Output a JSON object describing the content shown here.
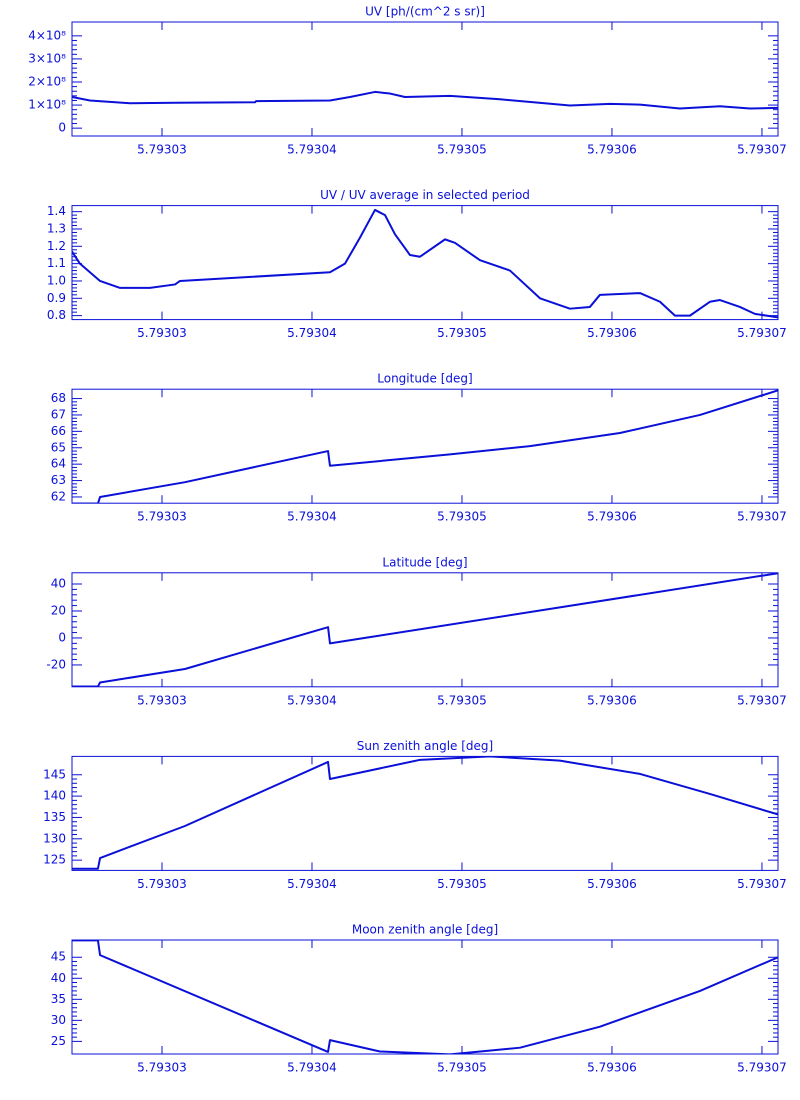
{
  "chart_data": [
    {
      "type": "line",
      "title": "UV [ph/(cm^2 s sr)]",
      "color": "#0a10d8",
      "x": [
        5.793024,
        5.7930252,
        5.79302787,
        5.79303087,
        5.7930362,
        5.79303627,
        5.7930412,
        5.79304253,
        5.7930442,
        5.7930452,
        5.7930462,
        5.7930492,
        5.79305253,
        5.7930572,
        5.79305987,
        5.79306187,
        5.79306453,
        5.7930672,
        5.7930692,
        5.79307107
      ],
      "values": [
        135000000,
        120000000,
        108000000,
        110000000,
        112000000,
        117000000,
        120000000,
        135000000,
        157000000,
        150000000,
        135000000,
        140000000,
        125000000,
        98000000,
        105000000,
        102000000,
        85000000,
        95000000,
        85000000,
        88000000
      ],
      "xlim": [
        5.793024,
        5.79307107
      ],
      "xticks": [
        5.79303,
        5.79304,
        5.79305,
        5.79306,
        5.79307
      ],
      "ylim": [
        -34000000,
        460000000
      ],
      "yticks": [
        0,
        {
          "value": 100000000,
          "label": "1×10⁸"
        },
        {
          "value": 200000000,
          "label": "2×10⁸"
        },
        {
          "value": 300000000,
          "label": "3×10⁸"
        },
        {
          "value": 400000000,
          "label": "4×10⁸"
        }
      ]
    },
    {
      "type": "line",
      "title": "UV / UV average in selected period",
      "color": "#0a10d8",
      "x": [
        5.793024,
        5.79302453,
        5.79302587,
        5.7930272,
        5.7930292,
        5.79303087,
        5.7930312,
        5.7930412,
        5.7930422,
        5.7930432,
        5.7930442,
        5.79304487,
        5.79304553,
        5.79304653,
        5.7930472,
        5.79304887,
        5.79304953,
        5.7930512,
        5.7930532,
        5.7930552,
        5.7930572,
        5.79305853,
        5.7930592,
        5.79306187,
        5.7930632,
        5.7930642,
        5.7930652,
        5.79306653,
        5.7930672,
        5.79306853,
        5.79306953,
        5.79307107
      ],
      "values": [
        1.17,
        1.1,
        1.0,
        0.96,
        0.96,
        0.98,
        1.0,
        1.05,
        1.1,
        1.25,
        1.41,
        1.38,
        1.27,
        1.15,
        1.14,
        1.24,
        1.22,
        1.12,
        1.06,
        0.9,
        0.84,
        0.85,
        0.92,
        0.93,
        0.88,
        0.8,
        0.8,
        0.88,
        0.89,
        0.85,
        0.81,
        0.79
      ],
      "xlim": [
        5.793024,
        5.79307107
      ],
      "xticks": [
        5.79303,
        5.79304,
        5.79305,
        5.79306,
        5.79307
      ],
      "ylim": [
        0.777,
        1.435
      ],
      "yticks": [
        {
          "value": 0.8,
          "label": "0.8"
        },
        {
          "value": 0.9,
          "label": "0.9"
        },
        {
          "value": 1,
          "label": "1.0"
        },
        1.1,
        1.2,
        1.3,
        1.4
      ]
    },
    {
      "type": "line",
      "title": "Longitude [deg]",
      "color": "#0a10d8",
      "x": [
        5.793024,
        5.79302573,
        5.79302587,
        5.79303153,
        5.79304107,
        5.7930412,
        5.7930492,
        5.79305453,
        5.79306053,
        5.79306587,
        5.79307107
      ],
      "values": [
        61.6,
        61.6,
        62,
        62.9,
        64.8,
        63.9,
        64.6,
        65.1,
        65.9,
        67,
        68.5
      ],
      "xlim": [
        5.793024,
        5.79307107
      ],
      "xticks": [
        5.79303,
        5.79304,
        5.79305,
        5.79306,
        5.79307
      ],
      "ylim": [
        61.62,
        68.57
      ],
      "yticks": [
        62,
        63,
        64,
        65,
        66,
        67,
        68
      ]
    },
    {
      "type": "line",
      "title": "Latitude [deg]",
      "color": "#0a10d8",
      "x": [
        5.793024,
        5.79302573,
        5.79302587,
        5.79303153,
        5.79304107,
        5.7930412,
        5.79307107
      ],
      "values": [
        -36,
        -36,
        -33,
        -23,
        8,
        -4,
        48
      ],
      "xlim": [
        5.793024,
        5.79307107
      ],
      "xticks": [
        5.79303,
        5.79304,
        5.79305,
        5.79306,
        5.79307
      ],
      "ylim": [
        -36.2,
        48.3
      ],
      "yticks": [
        -20,
        0,
        20,
        40
      ]
    },
    {
      "type": "line",
      "title": "Sun zenith angle [deg]",
      "color": "#0a10d8",
      "x": [
        5.793024,
        5.79302573,
        5.79302587,
        5.79303153,
        5.79304107,
        5.7930412,
        5.7930472,
        5.79305187,
        5.79305653,
        5.79306187,
        5.79306653,
        5.79307107
      ],
      "values": [
        123,
        123,
        125.5,
        133,
        148,
        144,
        148.5,
        149.3,
        148.3,
        145.2,
        140.5,
        135.7
      ],
      "xlim": [
        5.793024,
        5.79307107
      ],
      "xticks": [
        5.79303,
        5.79304,
        5.79305,
        5.79306,
        5.79307
      ],
      "ylim": [
        122.6,
        149.3
      ],
      "yticks": [
        125,
        130,
        135,
        140,
        145
      ]
    },
    {
      "type": "line",
      "title": "Moon zenith angle [deg]",
      "color": "#0a10d8",
      "x": [
        5.793024,
        5.79302573,
        5.79302587,
        5.79304107,
        5.7930412,
        5.79304453,
        5.7930492,
        5.79305387,
        5.7930592,
        5.79306587,
        5.79307107
      ],
      "values": [
        49,
        49,
        45.5,
        22.5,
        25.3,
        22.6,
        21.9,
        23.5,
        28.5,
        37,
        45
      ],
      "xlim": [
        5.793024,
        5.79307107
      ],
      "xticks": [
        5.79303,
        5.79304,
        5.79305,
        5.79306,
        5.79307
      ],
      "ylim": [
        22,
        49.1
      ],
      "yticks": [
        25,
        30,
        35,
        40,
        45
      ]
    }
  ]
}
